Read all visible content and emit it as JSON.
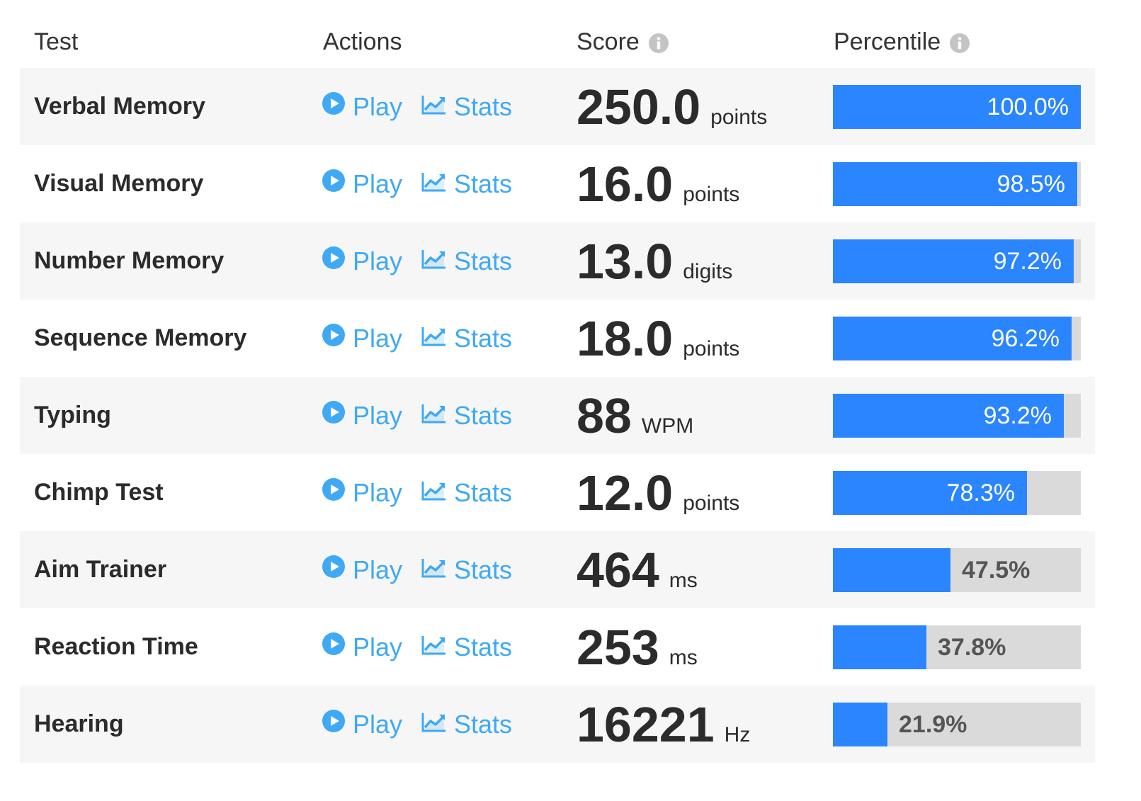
{
  "header": {
    "test": "Test",
    "actions": "Actions",
    "score": "Score",
    "percentile": "Percentile",
    "info_icon": "info-icon"
  },
  "actions": {
    "play_label": "Play",
    "stats_label": "Stats",
    "play_icon": "play-circle-icon",
    "stats_icon": "line-chart-icon"
  },
  "colors": {
    "link": "#3fa9f5",
    "bar_fill": "#2a85ff",
    "bar_track": "#dadada",
    "row_alt": "#f6f6f6"
  },
  "rows": [
    {
      "name": "Verbal Memory",
      "score": "250.0",
      "unit": "points",
      "percentile_label": "100.0%",
      "percentile": 100.0
    },
    {
      "name": "Visual Memory",
      "score": "16.0",
      "unit": "points",
      "percentile_label": "98.5%",
      "percentile": 98.5
    },
    {
      "name": "Number Memory",
      "score": "13.0",
      "unit": "digits",
      "percentile_label": "97.2%",
      "percentile": 97.2
    },
    {
      "name": "Sequence Memory",
      "score": "18.0",
      "unit": "points",
      "percentile_label": "96.2%",
      "percentile": 96.2
    },
    {
      "name": "Typing",
      "score": "88",
      "unit": "WPM",
      "percentile_label": "93.2%",
      "percentile": 93.2
    },
    {
      "name": "Chimp Test",
      "score": "12.0",
      "unit": "points",
      "percentile_label": "78.3%",
      "percentile": 78.3
    },
    {
      "name": "Aim Trainer",
      "score": "464",
      "unit": "ms",
      "percentile_label": "47.5%",
      "percentile": 47.5
    },
    {
      "name": "Reaction Time",
      "score": "253",
      "unit": "ms",
      "percentile_label": "37.8%",
      "percentile": 37.8
    },
    {
      "name": "Hearing",
      "score": "16221",
      "unit": "Hz",
      "percentile_label": "21.9%",
      "percentile": 21.9
    }
  ]
}
